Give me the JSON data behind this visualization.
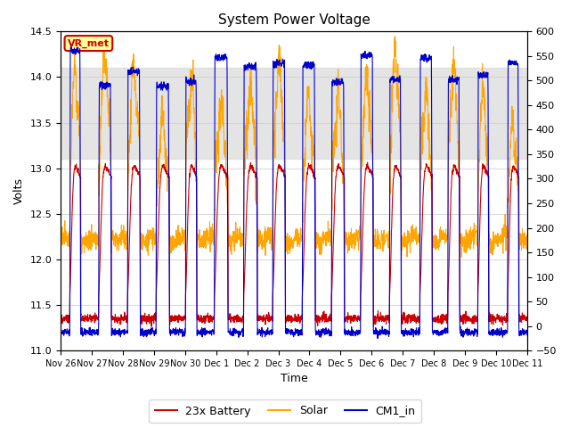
{
  "title": "System Power Voltage",
  "xlabel": "Time",
  "ylabel": "Volts",
  "ylim_left": [
    11.0,
    14.5
  ],
  "ylim_right": [
    -50,
    600
  ],
  "yticks_left": [
    11.0,
    11.5,
    12.0,
    12.5,
    13.0,
    13.5,
    14.0,
    14.5
  ],
  "yticks_right": [
    -50,
    0,
    50,
    100,
    150,
    200,
    250,
    300,
    350,
    400,
    450,
    500,
    550,
    600
  ],
  "xtick_labels": [
    "Nov 26",
    "Nov 27",
    "Nov 28",
    "Nov 29",
    "Nov 30",
    "Dec 1",
    "Dec 2",
    "Dec 3",
    "Dec 4",
    "Dec 5",
    "Dec 6",
    "Dec 7",
    "Dec 8",
    "Dec 9",
    "Dec 10",
    "Dec 11"
  ],
  "annotation_text": "VR_met",
  "annotation_color": "#cc0000",
  "annotation_bg": "#ffff99",
  "shaded_region": [
    13.1,
    14.1
  ],
  "colors": {
    "battery": "#cc0000",
    "solar": "#ffa500",
    "cm1_in": "#0000cc"
  },
  "legend_labels": [
    "23x Battery",
    "Solar",
    "CM1_in"
  ],
  "n_days": 16,
  "background_color": "#ffffff"
}
